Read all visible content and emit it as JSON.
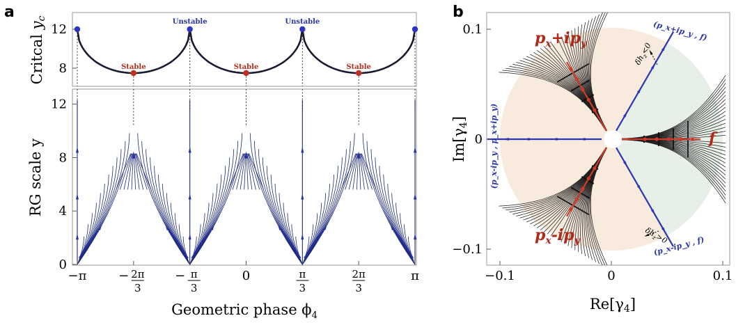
{
  "figure": {
    "panel_a_label": "a",
    "panel_b_label": "b"
  },
  "chart_data": [
    {
      "type": "line",
      "panel": "a-top",
      "ylabel": "Critcal y_c",
      "ylabel_parts": {
        "main": "Critcal ",
        "var": "y",
        "sub": "c"
      },
      "xlim": [
        -3.14159,
        3.14159
      ],
      "ylim": [
        6,
        13.5
      ],
      "yticks": [
        8,
        12
      ],
      "series": [
        {
          "x": [
            -3.14159,
            -2.0944,
            -1.0472,
            0,
            1.0472,
            2.0944,
            3.14159
          ],
          "y": [
            12,
            7.5,
            12,
            7.5,
            12,
            7.5,
            12
          ]
        }
      ],
      "points": [
        {
          "x": -3.14159,
          "y": 12,
          "kind": "unstable"
        },
        {
          "x": -2.0944,
          "y": 7.5,
          "kind": "stable"
        },
        {
          "x": -1.0472,
          "y": 12,
          "kind": "unstable"
        },
        {
          "x": 0,
          "y": 7.5,
          "kind": "stable"
        },
        {
          "x": 1.0472,
          "y": 12,
          "kind": "unstable"
        },
        {
          "x": 2.0944,
          "y": 7.5,
          "kind": "stable"
        },
        {
          "x": 3.14159,
          "y": 12,
          "kind": "unstable"
        }
      ],
      "annotations": [
        {
          "text": "Stable",
          "x": -2.0944,
          "y": 7.5,
          "kind": "stable"
        },
        {
          "text": "Unstable",
          "x": -1.0472,
          "y": 12,
          "kind": "unstable"
        },
        {
          "text": "Stable",
          "x": 0,
          "y": 7.5,
          "kind": "stable"
        },
        {
          "text": "Unstable",
          "x": 1.0472,
          "y": 12,
          "kind": "unstable"
        },
        {
          "text": "Stable",
          "x": 2.0944,
          "y": 7.5,
          "kind": "stable"
        }
      ]
    },
    {
      "type": "line",
      "panel": "a-bottom",
      "title": "",
      "ylabel": "RG scale y",
      "xlabel": "Geometric phase ϕ",
      "xlabel_sub": "4",
      "xlim": [
        -3.14159,
        3.14159
      ],
      "ylim": [
        0,
        12.5
      ],
      "yticks": [
        0,
        4,
        8,
        12
      ],
      "xticks": [
        {
          "value": -3.14159,
          "label": "−π"
        },
        {
          "value": -2.0944,
          "label_prefix": "−",
          "num": "2π",
          "den": "3"
        },
        {
          "value": -1.0472,
          "label_prefix": "−",
          "num": "π",
          "den": "3"
        },
        {
          "value": 0,
          "label": "0"
        },
        {
          "value": 1.0472,
          "num": "π",
          "den": "3"
        },
        {
          "value": 2.0944,
          "num": "2π",
          "den": "3"
        },
        {
          "value": 3.14159,
          "label": "π"
        }
      ],
      "flow_peak_y": 10.4,
      "stable_y": 7.5,
      "centers": [
        -2.0944,
        0,
        2.0944
      ]
    },
    {
      "type": "scatter",
      "panel": "b",
      "xlabel": "Re[γ",
      "ylabel": "Im[γ",
      "label_sub": "4",
      "label_close": "]",
      "xlim": [
        -0.115,
        0.11
      ],
      "ylim": [
        -0.115,
        0.122
      ],
      "xticks": [
        -0.1,
        0,
        0.1
      ],
      "xtick_labels": [
        "−0.1",
        "0",
        "0.1"
      ],
      "yticks": [
        -0.1,
        0,
        0.1
      ],
      "ytick_labels": [
        "−0.1",
        "0",
        "0.1"
      ],
      "disk_radius": 0.1,
      "stable_directions_deg": [
        0,
        120,
        240
      ],
      "boundary_directions_deg": [
        60,
        180,
        300
      ],
      "phase_labels": [
        {
          "text": "f",
          "dir_deg": 0
        },
        {
          "text": "p_x+ip_y",
          "main": "p",
          "sub1": "x",
          "mid": "+ip",
          "sub2": "y",
          "dir_deg": 120
        },
        {
          "text": "p_x-ip_y",
          "main": "p",
          "sub1": "x",
          "mid": "-ip",
          "sub2": "y",
          "dir_deg": 240
        }
      ],
      "boundary_labels": [
        {
          "text": "(p_x+ip_y , f)",
          "dir_deg": 60
        },
        {
          "text": "(p_x-ip_y , p_x+ip_y)",
          "dir_deg": 180
        },
        {
          "text": "(p_x-ip_y , f)",
          "dir_deg": 300
        }
      ],
      "delta_labels": [
        {
          "text": "δh_z<0",
          "main": "δh",
          "sub": "z",
          "rel": "<0"
        },
        {
          "text": "δh_z>0",
          "main": "δh",
          "sub": "z",
          "rel": ">0"
        }
      ],
      "colors": {
        "flow": "#1f1f1f",
        "stable": "#d03a2a",
        "boundary": "#2b35b5",
        "bg_f": "#e7efe9",
        "bg_p": "#f8eadc"
      }
    }
  ]
}
